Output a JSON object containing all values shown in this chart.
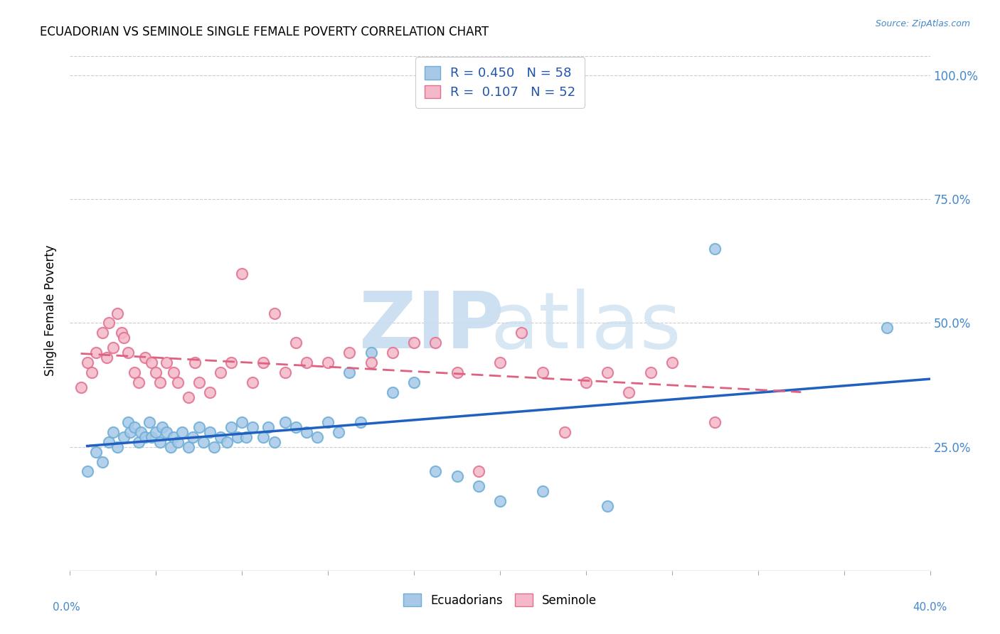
{
  "title": "ECUADORIAN VS SEMINOLE SINGLE FEMALE POVERTY CORRELATION CHART",
  "source": "Source: ZipAtlas.com",
  "ylabel": "Single Female Poverty",
  "ytick_values": [
    0.25,
    0.5,
    0.75,
    1.0
  ],
  "ytick_labels": [
    "25.0%",
    "50.0%",
    "75.0%",
    "100.0%"
  ],
  "xlim": [
    0.0,
    0.4
  ],
  "ylim": [
    0.0,
    1.05
  ],
  "ecuadorian_color": "#a8c8e8",
  "ecuadorian_edge": "#6baed6",
  "seminole_color": "#f4b8c8",
  "seminole_edge": "#e07090",
  "trend_blue": "#2060c0",
  "trend_pink": "#e06080",
  "ecuadorian_R": 0.45,
  "ecuadorian_N": 58,
  "seminole_R": 0.107,
  "seminole_N": 52,
  "legend_label_1": "Ecuadorians",
  "legend_label_2": "Seminole",
  "background_color": "#ffffff",
  "watermark_color": "#d8e8f4",
  "ecuadorian_x": [
    0.008,
    0.012,
    0.015,
    0.018,
    0.02,
    0.022,
    0.025,
    0.027,
    0.028,
    0.03,
    0.032,
    0.033,
    0.035,
    0.037,
    0.038,
    0.04,
    0.042,
    0.043,
    0.045,
    0.047,
    0.048,
    0.05,
    0.052,
    0.055,
    0.057,
    0.06,
    0.062,
    0.065,
    0.067,
    0.07,
    0.073,
    0.075,
    0.078,
    0.08,
    0.082,
    0.085,
    0.09,
    0.092,
    0.095,
    0.1,
    0.105,
    0.11,
    0.115,
    0.12,
    0.125,
    0.13,
    0.135,
    0.14,
    0.15,
    0.16,
    0.17,
    0.18,
    0.19,
    0.2,
    0.22,
    0.25,
    0.3,
    0.38
  ],
  "ecuadorian_y": [
    0.2,
    0.24,
    0.22,
    0.26,
    0.28,
    0.25,
    0.27,
    0.3,
    0.28,
    0.29,
    0.26,
    0.28,
    0.27,
    0.3,
    0.27,
    0.28,
    0.26,
    0.29,
    0.28,
    0.25,
    0.27,
    0.26,
    0.28,
    0.25,
    0.27,
    0.29,
    0.26,
    0.28,
    0.25,
    0.27,
    0.26,
    0.29,
    0.27,
    0.3,
    0.27,
    0.29,
    0.27,
    0.29,
    0.26,
    0.3,
    0.29,
    0.28,
    0.27,
    0.3,
    0.28,
    0.4,
    0.3,
    0.44,
    0.36,
    0.38,
    0.2,
    0.19,
    0.17,
    0.14,
    0.16,
    0.13,
    0.65,
    0.49
  ],
  "seminole_x": [
    0.005,
    0.008,
    0.01,
    0.012,
    0.015,
    0.017,
    0.018,
    0.02,
    0.022,
    0.024,
    0.025,
    0.027,
    0.03,
    0.032,
    0.035,
    0.038,
    0.04,
    0.042,
    0.045,
    0.048,
    0.05,
    0.055,
    0.058,
    0.06,
    0.065,
    0.07,
    0.075,
    0.08,
    0.085,
    0.09,
    0.095,
    0.1,
    0.105,
    0.11,
    0.12,
    0.13,
    0.14,
    0.15,
    0.16,
    0.17,
    0.18,
    0.19,
    0.2,
    0.21,
    0.22,
    0.23,
    0.24,
    0.25,
    0.26,
    0.27,
    0.28,
    0.3
  ],
  "seminole_y": [
    0.37,
    0.42,
    0.4,
    0.44,
    0.48,
    0.43,
    0.5,
    0.45,
    0.52,
    0.48,
    0.47,
    0.44,
    0.4,
    0.38,
    0.43,
    0.42,
    0.4,
    0.38,
    0.42,
    0.4,
    0.38,
    0.35,
    0.42,
    0.38,
    0.36,
    0.4,
    0.42,
    0.6,
    0.38,
    0.42,
    0.52,
    0.4,
    0.46,
    0.42,
    0.42,
    0.44,
    0.42,
    0.44,
    0.46,
    0.46,
    0.4,
    0.2,
    0.42,
    0.48,
    0.4,
    0.28,
    0.38,
    0.4,
    0.36,
    0.4,
    0.42,
    0.3
  ]
}
